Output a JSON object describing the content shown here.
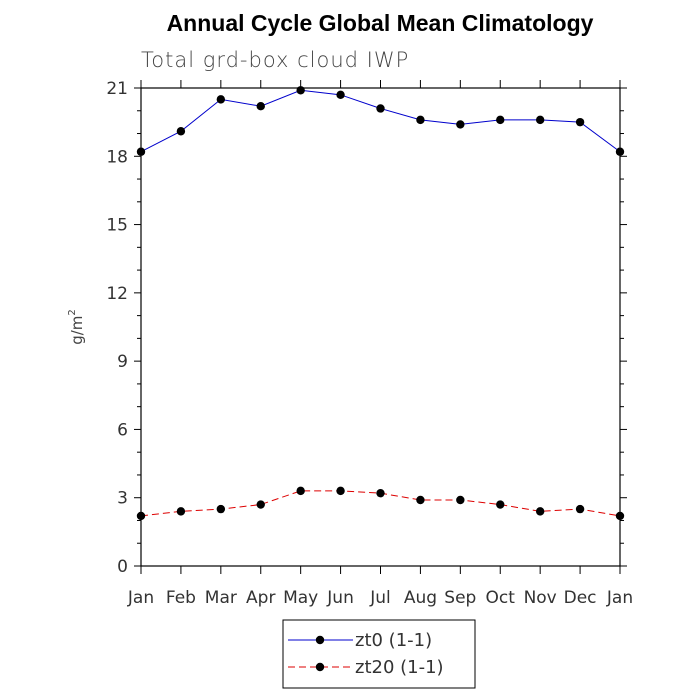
{
  "chart_data": {
    "type": "line",
    "title": "Annual Cycle Global Mean Climatology",
    "subtitle": "Total grd-box cloud IWP",
    "ylabel": "g/m",
    "ylabel_superscript": "2",
    "categories": [
      "Jan",
      "Feb",
      "Mar",
      "Apr",
      "May",
      "Jun",
      "Jul",
      "Aug",
      "Sep",
      "Oct",
      "Nov",
      "Dec",
      "Jan"
    ],
    "ylim": [
      0,
      21
    ],
    "yticks": [
      0,
      3,
      6,
      9,
      12,
      15,
      18,
      21
    ],
    "grid": false,
    "legend_position": "bottom-center",
    "series": [
      {
        "name": "zt0 (1-1)",
        "color": "#0000cc",
        "line_style": "solid",
        "marker": "circle",
        "values": [
          18.2,
          19.1,
          20.5,
          20.2,
          20.9,
          20.7,
          20.1,
          19.6,
          19.4,
          19.6,
          19.6,
          19.5,
          18.2
        ]
      },
      {
        "name": "zt20 (1-1)",
        "color": "#dd0000",
        "line_style": "dashed",
        "marker": "circle",
        "values": [
          2.2,
          2.4,
          2.5,
          2.7,
          3.3,
          3.3,
          3.2,
          2.9,
          2.9,
          2.7,
          2.4,
          2.5,
          2.2
        ]
      }
    ]
  }
}
